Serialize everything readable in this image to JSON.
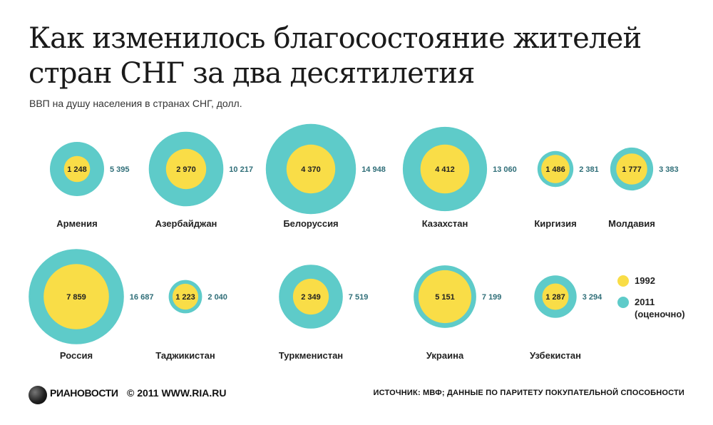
{
  "title": "Как изменилось благосостояние жителей стран СНГ за два десятилетия",
  "subtitle": "ВВП на душу населения в странах СНГ, долл.",
  "colors": {
    "y1992": "#f9dd47",
    "y2011": "#5ecbc9",
    "value_2011_text": "#2f6e78"
  },
  "legend": {
    "label_1992": "1992",
    "label_2011": "2011",
    "label_2011_note": "(оценочно)"
  },
  "footer": {
    "logo_icon": "ria-globe-icon",
    "logo_text": "РИАНОВОСТИ",
    "copyright": "© 2011 WWW.RIA.RU",
    "source": "ИСТОЧНИК: МВФ; ДАННЫЕ ПО ПАРИТЕТУ ПОКУПАТЕЛЬНОЙ СПОСОБНОСТИ"
  },
  "chart_data": {
    "type": "bubble",
    "series": [
      {
        "name": "1992"
      },
      {
        "name": "2011 (оценочно)"
      }
    ],
    "items": [
      {
        "country": "Армения",
        "v1992": 1248,
        "v2011": 5395,
        "label1992": "1 248",
        "label2011": "5 395"
      },
      {
        "country": "Азербайджан",
        "v1992": 2970,
        "v2011": 10217,
        "label1992": "2 970",
        "label2011": "10 217"
      },
      {
        "country": "Белоруссия",
        "v1992": 4370,
        "v2011": 14948,
        "label1992": "4 370",
        "label2011": "14 948"
      },
      {
        "country": "Казахстан",
        "v1992": 4412,
        "v2011": 13060,
        "label1992": "4 412",
        "label2011": "13 060"
      },
      {
        "country": "Киргизия",
        "v1992": 1486,
        "v2011": 2381,
        "label1992": "1 486",
        "label2011": "2 381"
      },
      {
        "country": "Молдавия",
        "v1992": 1777,
        "v2011": 3383,
        "label1992": "1 777",
        "label2011": "3 383"
      },
      {
        "country": "Россия",
        "v1992": 7859,
        "v2011": 16687,
        "label1992": "7 859",
        "label2011": "16 687"
      },
      {
        "country": "Таджикистан",
        "v1992": 1223,
        "v2011": 2040,
        "label1992": "1 223",
        "label2011": "2 040"
      },
      {
        "country": "Туркменистан",
        "v1992": 2349,
        "v2011": 7519,
        "label1992": "2 349",
        "label2011": "7 519"
      },
      {
        "country": "Украина",
        "v1992": 5151,
        "v2011": 7199,
        "label1992": "5 151",
        "label2011": "7 199"
      },
      {
        "country": "Узбекистан",
        "v1992": 1287,
        "v2011": 3294,
        "label1992": "1 287",
        "label2011": "3 294"
      }
    ]
  }
}
